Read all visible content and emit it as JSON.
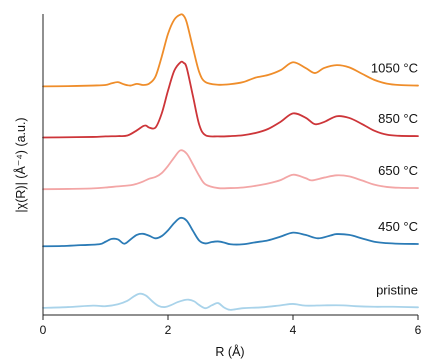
{
  "chart_data": {
    "type": "line",
    "title": "",
    "xlabel": "R (Å)",
    "ylabel": "|χ(R)|  (Å⁻⁴) (a.u.)",
    "xlim": [
      0,
      6
    ],
    "ylim": [
      0,
      1.06
    ],
    "xticks": [
      "0",
      "2",
      "4",
      "6"
    ],
    "grid": false,
    "legend": "inline-right",
    "y_ticks_shown": false,
    "series": [
      {
        "name": "pristine",
        "color": "#a9d3ea",
        "x": [
          0,
          0.4,
          0.8,
          1.0,
          1.2,
          1.35,
          1.45,
          1.55,
          1.65,
          1.75,
          1.85,
          1.95,
          2.05,
          2.15,
          2.25,
          2.33,
          2.42,
          2.5,
          2.6,
          2.7,
          2.8,
          2.9,
          3.0,
          3.2,
          3.5,
          3.8,
          4.0,
          4.2,
          4.5,
          4.8,
          5.0,
          5.3,
          5.6,
          6.0
        ],
        "y": [
          0.025,
          0.028,
          0.033,
          0.031,
          0.038,
          0.05,
          0.065,
          0.075,
          0.068,
          0.048,
          0.032,
          0.028,
          0.035,
          0.045,
          0.052,
          0.054,
          0.048,
          0.035,
          0.024,
          0.034,
          0.042,
          0.026,
          0.018,
          0.024,
          0.027,
          0.034,
          0.039,
          0.033,
          0.034,
          0.034,
          0.031,
          0.029,
          0.029,
          0.027
        ]
      },
      {
        "name": "450 °C",
        "color": "#2b7bb6",
        "x": [
          0,
          0.3,
          0.6,
          0.9,
          1.0,
          1.1,
          1.2,
          1.3,
          1.4,
          1.5,
          1.6,
          1.7,
          1.8,
          1.9,
          2.0,
          2.1,
          2.2,
          2.3,
          2.4,
          2.5,
          2.6,
          2.7,
          2.8,
          2.9,
          3.0,
          3.2,
          3.4,
          3.6,
          3.8,
          4.0,
          4.2,
          4.4,
          4.6,
          4.7,
          4.9,
          5.1,
          5.3,
          5.5,
          5.7,
          6.0
        ],
        "y": [
          0.242,
          0.243,
          0.246,
          0.249,
          0.258,
          0.268,
          0.266,
          0.251,
          0.266,
          0.282,
          0.286,
          0.279,
          0.27,
          0.278,
          0.298,
          0.324,
          0.342,
          0.332,
          0.296,
          0.262,
          0.252,
          0.257,
          0.259,
          0.255,
          0.249,
          0.249,
          0.256,
          0.263,
          0.276,
          0.29,
          0.282,
          0.27,
          0.28,
          0.285,
          0.282,
          0.27,
          0.258,
          0.253,
          0.251,
          0.25
        ]
      },
      {
        "name": "650 °C",
        "color": "#f3a6a6",
        "x": [
          0,
          0.4,
          0.8,
          1.0,
          1.2,
          1.4,
          1.5,
          1.6,
          1.7,
          1.8,
          1.9,
          2.0,
          2.1,
          2.2,
          2.3,
          2.4,
          2.5,
          2.6,
          2.8,
          3.0,
          3.2,
          3.4,
          3.6,
          3.8,
          4.0,
          4.2,
          4.3,
          4.5,
          4.7,
          4.9,
          5.1,
          5.3,
          5.5,
          5.7,
          6.0
        ],
        "y": [
          0.443,
          0.444,
          0.446,
          0.449,
          0.453,
          0.457,
          0.462,
          0.47,
          0.48,
          0.486,
          0.5,
          0.525,
          0.555,
          0.58,
          0.568,
          0.53,
          0.49,
          0.46,
          0.447,
          0.447,
          0.449,
          0.455,
          0.463,
          0.475,
          0.494,
          0.482,
          0.474,
          0.484,
          0.492,
          0.488,
          0.474,
          0.459,
          0.451,
          0.448,
          0.447
        ]
      },
      {
        "name": "850 °C",
        "color": "#cd3539",
        "x": [
          0,
          0.4,
          0.8,
          1.0,
          1.2,
          1.35,
          1.5,
          1.6,
          1.65,
          1.7,
          1.8,
          1.9,
          2.0,
          2.1,
          2.2,
          2.25,
          2.3,
          2.4,
          2.5,
          2.6,
          2.8,
          3.0,
          3.2,
          3.4,
          3.6,
          3.8,
          4.0,
          4.2,
          4.35,
          4.5,
          4.7,
          4.9,
          5.1,
          5.3,
          5.5,
          5.7,
          6.0
        ],
        "y": [
          0.625,
          0.626,
          0.627,
          0.629,
          0.63,
          0.632,
          0.65,
          0.665,
          0.667,
          0.66,
          0.66,
          0.71,
          0.79,
          0.86,
          0.89,
          0.888,
          0.87,
          0.77,
          0.67,
          0.633,
          0.629,
          0.63,
          0.633,
          0.641,
          0.655,
          0.68,
          0.71,
          0.695,
          0.672,
          0.68,
          0.7,
          0.694,
          0.673,
          0.649,
          0.635,
          0.631,
          0.63
        ]
      },
      {
        "name": "1050 °C",
        "color": "#ef8d2a",
        "x": [
          0,
          0.4,
          0.8,
          1.0,
          1.1,
          1.2,
          1.3,
          1.4,
          1.5,
          1.6,
          1.7,
          1.8,
          1.9,
          2.0,
          2.1,
          2.2,
          2.25,
          2.3,
          2.4,
          2.5,
          2.6,
          2.8,
          3.0,
          3.2,
          3.4,
          3.6,
          3.8,
          4.0,
          4.2,
          4.35,
          4.5,
          4.7,
          4.9,
          5.1,
          5.3,
          5.5,
          5.7,
          6.0
        ],
        "y": [
          0.805,
          0.806,
          0.808,
          0.81,
          0.816,
          0.82,
          0.812,
          0.808,
          0.814,
          0.81,
          0.815,
          0.84,
          0.91,
          0.99,
          1.04,
          1.058,
          1.054,
          1.03,
          0.94,
          0.855,
          0.82,
          0.811,
          0.813,
          0.82,
          0.836,
          0.845,
          0.862,
          0.89,
          0.87,
          0.852,
          0.87,
          0.88,
          0.872,
          0.85,
          0.828,
          0.815,
          0.81,
          0.808
        ]
      }
    ]
  }
}
